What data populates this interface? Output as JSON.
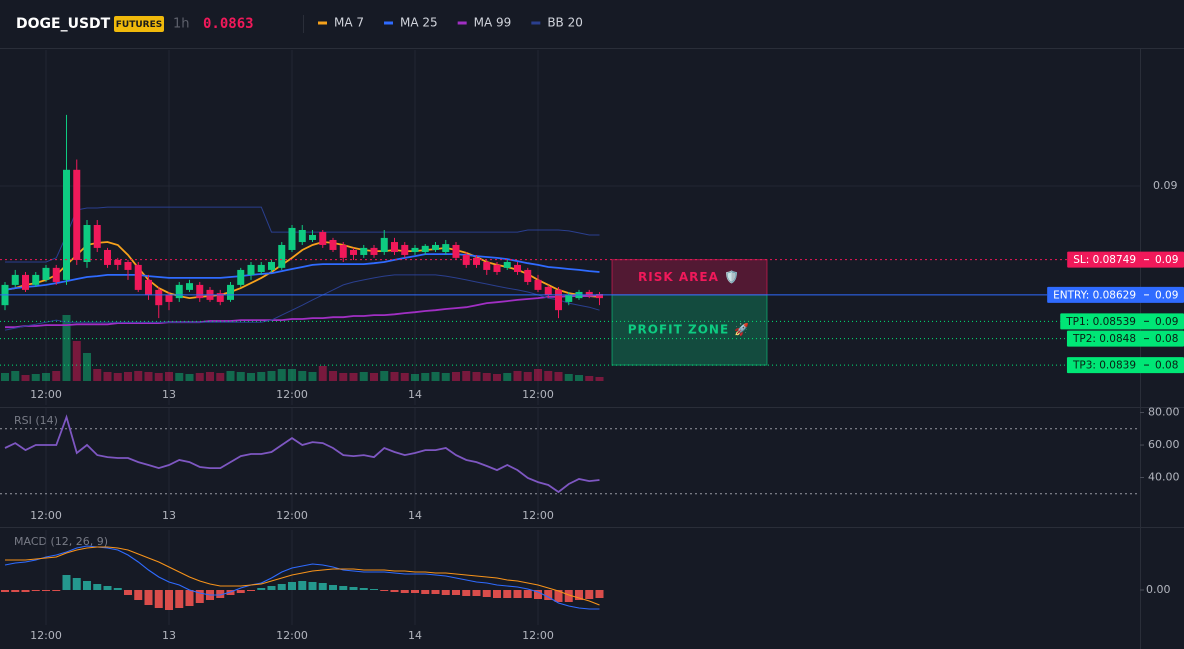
{
  "header": {
    "symbol": "DOGE_USDT",
    "badge": "FUTURES",
    "interval": "1h",
    "price": "0.0863"
  },
  "chart_data": [
    {
      "type": "candlestick",
      "categories": [
        null,
        null,
        null,
        null,
        "12:00",
        null,
        null,
        null,
        null,
        null,
        null,
        null,
        null,
        null,
        null,
        null,
        "13",
        null,
        null,
        null,
        null,
        null,
        null,
        null,
        null,
        null,
        null,
        null,
        "12:00",
        null,
        null,
        null,
        null,
        null,
        null,
        null,
        null,
        null,
        null,
        null,
        "14",
        null,
        null,
        null,
        null,
        null,
        null,
        null,
        null,
        null,
        null,
        null,
        "12:00",
        null,
        null,
        null,
        null,
        null,
        null
      ],
      "open": [
        0.08594,
        0.08663,
        0.08697,
        0.08663,
        0.0868,
        0.08721,
        0.0868,
        0.09055,
        0.08741,
        0.08867,
        0.08782,
        0.08748,
        0.08741,
        0.08731,
        0.0868,
        0.08646,
        0.08629,
        0.08618,
        0.08646,
        0.08663,
        0.08646,
        0.08635,
        0.08612,
        0.08663,
        0.08697,
        0.08707,
        0.08714,
        0.08721,
        0.08782,
        0.08809,
        0.08816,
        0.08843,
        0.08816,
        0.08799,
        0.08782,
        0.08765,
        0.08789,
        0.08775,
        0.08809,
        0.08799,
        0.08775,
        0.08775,
        0.08782,
        0.08775,
        0.08799,
        0.08765,
        0.08755,
        0.08741,
        0.08731,
        0.08721,
        0.08731,
        0.08714,
        0.0868,
        0.08656,
        0.08646,
        0.08605,
        0.08618,
        0.08639,
        0.08632
      ],
      "high": [
        0.08673,
        0.08714,
        0.08707,
        0.08707,
        0.08731,
        0.08731,
        0.09242,
        0.0909,
        0.08884,
        0.08884,
        0.08789,
        0.08755,
        0.08748,
        0.08741,
        0.08697,
        0.08656,
        0.08639,
        0.08673,
        0.0868,
        0.08673,
        0.08656,
        0.08646,
        0.08673,
        0.08721,
        0.08741,
        0.08741,
        0.08748,
        0.08809,
        0.08867,
        0.08867,
        0.0885,
        0.0885,
        0.08823,
        0.08809,
        0.08789,
        0.08799,
        0.08799,
        0.0885,
        0.08823,
        0.08809,
        0.08799,
        0.08802,
        0.08809,
        0.08816,
        0.08809,
        0.08775,
        0.08765,
        0.08748,
        0.08741,
        0.08748,
        0.08741,
        0.08721,
        0.08697,
        0.08663,
        0.08656,
        0.08639,
        0.08646,
        0.08646,
        0.08639
      ],
      "low": [
        0.08577,
        0.08656,
        0.08639,
        0.08656,
        0.08673,
        0.08663,
        0.08663,
        0.08731,
        0.08721,
        0.08775,
        0.08721,
        0.08714,
        0.0868,
        0.08639,
        0.08612,
        0.0855,
        0.08577,
        0.08605,
        0.08639,
        0.08605,
        0.08605,
        0.08594,
        0.08605,
        0.08656,
        0.0868,
        0.08697,
        0.08707,
        0.08714,
        0.08775,
        0.08799,
        0.08809,
        0.08789,
        0.08775,
        0.08741,
        0.08748,
        0.08755,
        0.08755,
        0.08765,
        0.08765,
        0.08755,
        0.08765,
        0.08765,
        0.08775,
        0.08765,
        0.08748,
        0.08721,
        0.08721,
        0.08697,
        0.08697,
        0.08714,
        0.08697,
        0.08663,
        0.08639,
        0.08618,
        0.0855,
        0.08594,
        0.08612,
        0.08618,
        0.08594
      ],
      "close": [
        0.08663,
        0.08697,
        0.08646,
        0.08697,
        0.08721,
        0.08673,
        0.09055,
        0.08748,
        0.08867,
        0.08789,
        0.08731,
        0.08731,
        0.08714,
        0.08646,
        0.08629,
        0.08594,
        0.08605,
        0.08663,
        0.08669,
        0.08618,
        0.08612,
        0.08605,
        0.08663,
        0.08714,
        0.08731,
        0.08731,
        0.08741,
        0.08799,
        0.08857,
        0.0885,
        0.08833,
        0.08799,
        0.08782,
        0.08755,
        0.08765,
        0.08789,
        0.08765,
        0.08823,
        0.08775,
        0.08765,
        0.08789,
        0.08796,
        0.08799,
        0.08802,
        0.08755,
        0.08731,
        0.08731,
        0.08714,
        0.08707,
        0.08741,
        0.08707,
        0.08673,
        0.08646,
        0.08629,
        0.08577,
        0.08629,
        0.08639,
        0.08625,
        0.08618
      ],
      "volume": [
        8,
        10,
        6,
        7,
        8,
        10,
        66,
        40,
        28,
        12,
        9,
        8,
        9,
        10,
        9,
        8,
        9,
        8,
        7,
        8,
        9,
        8,
        10,
        9,
        8,
        9,
        10,
        12,
        12,
        10,
        9,
        15,
        10,
        8,
        8,
        9,
        8,
        10,
        9,
        8,
        7,
        8,
        9,
        8,
        9,
        10,
        9,
        8,
        7,
        8,
        10,
        9,
        12,
        10,
        9,
        7,
        6,
        5,
        4
      ],
      "up_color": "#0ecb81",
      "down_color": "#f0195a",
      "ylim": [
        0.08254,
        0.09463
      ],
      "yticks": [
        0.09
      ],
      "grid": true,
      "series": [
        {
          "name": "MA 7",
          "color": "#f7a21b",
          "values": [
            0.08646,
            0.08652,
            0.08663,
            0.08669,
            0.0868,
            0.08697,
            0.08731,
            0.08765,
            0.08799,
            0.08806,
            0.08809,
            0.08799,
            0.08765,
            0.08721,
            0.0868,
            0.08652,
            0.08635,
            0.08625,
            0.08618,
            0.08622,
            0.08625,
            0.08629,
            0.08639,
            0.08652,
            0.08669,
            0.08687,
            0.08707,
            0.08731,
            0.08755,
            0.08782,
            0.08799,
            0.08809,
            0.08806,
            0.08799,
            0.08789,
            0.08782,
            0.08778,
            0.08778,
            0.08782,
            0.08778,
            0.08778,
            0.08782,
            0.08785,
            0.08789,
            0.08782,
            0.08772,
            0.08758,
            0.08741,
            0.08731,
            0.08724,
            0.08714,
            0.087,
            0.0868,
            0.08663,
            0.08646,
            0.08635,
            0.08629,
            0.08625,
            0.08622
          ]
        },
        {
          "name": "MA 25",
          "color": "#2f6bff",
          "values": [
            0.08646,
            0.08652,
            0.08656,
            0.08659,
            0.08663,
            0.08669,
            0.08676,
            0.08683,
            0.0869,
            0.08693,
            0.08697,
            0.08697,
            0.08697,
            0.08697,
            0.08693,
            0.0869,
            0.08687,
            0.08687,
            0.08687,
            0.08687,
            0.08687,
            0.08687,
            0.0869,
            0.08693,
            0.08697,
            0.087,
            0.08703,
            0.0871,
            0.08717,
            0.08724,
            0.08731,
            0.08734,
            0.08734,
            0.08734,
            0.08734,
            0.08734,
            0.08737,
            0.08741,
            0.08748,
            0.08755,
            0.08761,
            0.08768,
            0.08768,
            0.08768,
            0.08768,
            0.08765,
            0.08761,
            0.08758,
            0.08755,
            0.08751,
            0.08744,
            0.08737,
            0.08731,
            0.08724,
            0.08721,
            0.08717,
            0.08714,
            0.0871,
            0.08707
          ]
        },
        {
          "name": "MA 99",
          "color": "#a12fc4",
          "values": [
            0.08519,
            0.08519,
            0.08523,
            0.08523,
            0.08526,
            0.08526,
            0.08526,
            0.08529,
            0.08529,
            0.08529,
            0.08529,
            0.08533,
            0.08533,
            0.08533,
            0.08533,
            0.08533,
            0.08536,
            0.08536,
            0.08536,
            0.08536,
            0.0854,
            0.0854,
            0.0854,
            0.08543,
            0.08543,
            0.08543,
            0.08543,
            0.08543,
            0.08547,
            0.08547,
            0.0855,
            0.0855,
            0.08553,
            0.08553,
            0.08557,
            0.08557,
            0.0856,
            0.0856,
            0.08563,
            0.08567,
            0.0857,
            0.08574,
            0.08577,
            0.08581,
            0.08584,
            0.08587,
            0.08594,
            0.08601,
            0.08604,
            0.08608,
            0.08612,
            0.08615,
            0.08618,
            0.08622,
            0.08622,
            0.08625,
            0.08625,
            0.08625,
            0.08629
          ]
        },
        {
          "name": "BB 20",
          "color": "#2a3f8f",
          "values": [
            0.08741,
            0.08741,
            0.08741,
            0.08741,
            0.08741,
            0.08755,
            0.08833,
            0.08918,
            0.08925,
            0.08925,
            0.08928,
            0.08928,
            0.08928,
            0.08928,
            0.08928,
            0.08928,
            0.08928,
            0.08928,
            0.08928,
            0.08928,
            0.08928,
            0.08928,
            0.08928,
            0.08928,
            0.08928,
            0.08928,
            0.08843,
            0.08843,
            0.08843,
            0.08843,
            0.08843,
            0.08843,
            0.08843,
            0.08843,
            0.08843,
            0.08843,
            0.08843,
            0.08843,
            0.08843,
            0.08843,
            0.08843,
            0.08843,
            0.08843,
            0.08843,
            0.08843,
            0.08843,
            0.08843,
            0.08843,
            0.08843,
            0.08843,
            0.08843,
            0.0885,
            0.0885,
            0.0885,
            0.0885,
            0.08847,
            0.0884,
            0.08833,
            0.08833
          ],
          "lower": [
            0.08509,
            0.08516,
            0.08523,
            0.08529,
            0.08536,
            0.08543,
            0.08536,
            0.08536,
            0.08536,
            0.08536,
            0.08536,
            0.08536,
            0.08536,
            0.08536,
            0.08536,
            0.08536,
            0.08536,
            0.08536,
            0.08536,
            0.08536,
            0.08536,
            0.08536,
            0.08536,
            0.08536,
            0.08536,
            0.08536,
            0.08543,
            0.0856,
            0.08577,
            0.08594,
            0.08612,
            0.08629,
            0.08646,
            0.08663,
            0.08673,
            0.0868,
            0.08687,
            0.08693,
            0.08697,
            0.08697,
            0.08697,
            0.08697,
            0.08697,
            0.08693,
            0.08687,
            0.0868,
            0.08673,
            0.08666,
            0.08659,
            0.08652,
            0.08646,
            0.08639,
            0.08629,
            0.08618,
            0.08612,
            0.08601,
            0.08594,
            0.08587,
            0.08577
          ]
        }
      ],
      "order_lines": [
        {
          "label": "SL: 0.08749",
          "value": 0.08749,
          "axis_label": "0.09",
          "color": "#f0195a",
          "text_color": "#ffffff",
          "line_style": "dashed"
        },
        {
          "label": "ENTRY: 0.08629",
          "value": 0.08629,
          "axis_label": "0.09",
          "color": "#2f6bff",
          "text_color": "#ffffff",
          "line_style": "solid"
        },
        {
          "label": "TP1: 0.08539",
          "value": 0.08539,
          "axis_label": "0.09",
          "color": "#00e676",
          "text_color": "#0b1f14",
          "line_style": "dotted"
        },
        {
          "label": "TP2: 0.0848",
          "value": 0.0848,
          "axis_label": "0.08",
          "color": "#00e676",
          "text_color": "#0b1f14",
          "line_style": "dotted"
        },
        {
          "label": "TP3: 0.0839",
          "value": 0.0839,
          "axis_label": "0.08",
          "color": "#00e676",
          "text_color": "#0b1f14",
          "line_style": "dotted"
        }
      ],
      "zones": [
        {
          "label": "RISK AREA 🛡️",
          "from": 0.08749,
          "to": 0.08629,
          "color": "#f0195a"
        },
        {
          "label": "PROFIT ZONE 🚀",
          "from": 0.08629,
          "to": 0.0839,
          "color": "#0ecb81"
        }
      ]
    },
    {
      "type": "line",
      "title": "RSI (14)",
      "color": "#7e57c2",
      "values": [
        58.2,
        61.2,
        56.9,
        60,
        60,
        60,
        77.2,
        55.1,
        60,
        53.8,
        52.6,
        52,
        52,
        49.5,
        47.7,
        45.8,
        47.7,
        50.8,
        49.5,
        46.5,
        45.8,
        45.8,
        49.5,
        53.2,
        54.5,
        54.5,
        55.7,
        60,
        64.3,
        60,
        61.8,
        61.2,
        58.2,
        53.8,
        53.2,
        53.8,
        52.6,
        58.2,
        55.7,
        53.8,
        55.1,
        56.9,
        56.9,
        58.2,
        53.8,
        50.8,
        49.5,
        47.1,
        44.6,
        47.7,
        44.6,
        39.7,
        37.2,
        35.4,
        31.1,
        36,
        39.1,
        37.8,
        38.5
      ],
      "ylim": [
        15.7,
        82.8
      ],
      "yticks": [
        {
          "value": 80,
          "label": "80.00"
        },
        {
          "value": 60,
          "label": "60.00"
        },
        {
          "value": 40,
          "label": "40.00"
        }
      ],
      "levels": [
        70,
        30
      ]
    },
    {
      "type": "macd",
      "title": "MACD (12, 26, 9)",
      "ylim": [
        -0.000175,
        0.0003
      ],
      "yticks": [
        {
          "value": 0,
          "label": "0.00"
        }
      ],
      "series": [
        {
          "color": "#2f6bff",
          "values": [
            0.000125,
            0.000135,
            0.00014,
            0.00015,
            0.000165,
            0.000175,
            0.00019,
            0.00021,
            0.00022,
            0.000215,
            0.00021,
            0.0002,
            0.000175,
            0.00014,
            0.0001,
            6.5e-05,
            4e-05,
            2.5e-05,
            0,
            -1.5e-05,
            -2.5e-05,
            -2.5e-05,
            -1e-05,
            1e-05,
            2.5e-05,
            3.5e-05,
            6e-05,
            9e-05,
            0.00011,
            0.00012,
            0.00013,
            0.000125,
            0.000115,
            0.0001,
            9.5e-05,
            9e-05,
            9e-05,
            9e-05,
            8.5e-05,
            8e-05,
            8e-05,
            8e-05,
            7.5e-05,
            7e-05,
            6e-05,
            5e-05,
            4e-05,
            3.5e-05,
            2.5e-05,
            2e-05,
            1.5e-05,
            5e-06,
            -1e-05,
            -3.5e-05,
            -6.5e-05,
            -8e-05,
            -9e-05,
            -9.5e-05,
            -9.5e-05
          ]
        },
        {
          "color": "#f7931a",
          "values": [
            0.00015,
            0.00015,
            0.00015,
            0.000155,
            0.00016,
            0.000165,
            0.000185,
            0.0002,
            0.00021,
            0.000215,
            0.000215,
            0.00021,
            0.0002,
            0.00018,
            0.00016,
            0.00014,
            0.000115,
            9e-05,
            6.5e-05,
            4.5e-05,
            3e-05,
            2e-05,
            2e-05,
            2e-05,
            2.5e-05,
            3e-05,
            4.5e-05,
            6e-05,
            7.5e-05,
            8.5e-05,
            9.5e-05,
            0.0001,
            0.000105,
            0.000105,
            0.000105,
            0.0001,
            0.0001,
            0.0001,
            9.5e-05,
            9.5e-05,
            9e-05,
            9e-05,
            8.5e-05,
            8.5e-05,
            8e-05,
            7.5e-05,
            7e-05,
            6.5e-05,
            6e-05,
            5e-05,
            4.5e-05,
            3.5e-05,
            2.5e-05,
            1e-05,
            -5e-06,
            -2.5e-05,
            -4e-05,
            -5.5e-05,
            -7.5e-05
          ]
        }
      ],
      "histogram": {
        "up_color": "#26a69a",
        "down_color": "#ef5350",
        "values": [
          -1e-05,
          -1e-05,
          -1e-05,
          -5e-06,
          -5e-06,
          -5e-06,
          7.5e-05,
          6e-05,
          4.5e-05,
          3e-05,
          2e-05,
          1e-05,
          -2.5e-05,
          -5e-05,
          -7.5e-05,
          -9e-05,
          -0.0001,
          -9e-05,
          -8e-05,
          -6.5e-05,
          -5e-05,
          -4e-05,
          -2.5e-05,
          -1.5e-05,
          -5e-06,
          1e-05,
          2e-05,
          3e-05,
          4e-05,
          4.5e-05,
          4e-05,
          3.5e-05,
          2.5e-05,
          2e-05,
          1.5e-05,
          1e-05,
          5e-06,
          -5e-06,
          -1e-05,
          -1.5e-05,
          -1.5e-05,
          -2e-05,
          -2e-05,
          -2.5e-05,
          -2.5e-05,
          -3e-05,
          -3e-05,
          -3.5e-05,
          -4e-05,
          -4e-05,
          -4e-05,
          -4e-05,
          -4.5e-05,
          -5e-05,
          -6e-05,
          -6e-05,
          -5e-05,
          -4.5e-05,
          -4e-05
        ]
      }
    }
  ]
}
